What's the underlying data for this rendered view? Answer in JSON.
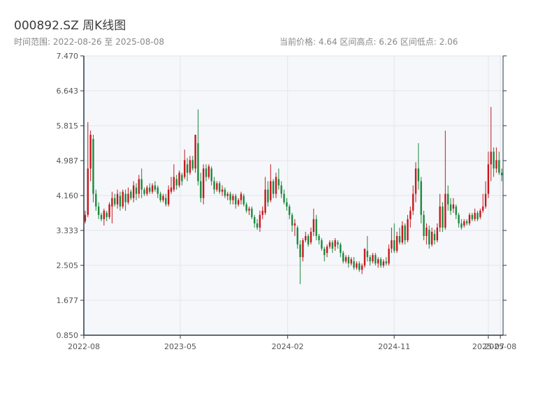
{
  "header": {
    "title": "000892.SZ 周K线图",
    "range_text": "时间范围: 2022-08-26 至 2025-08-08",
    "stats_text": "当前价格: 4.64  区间高点: 6.26  区间低点: 2.06"
  },
  "colors": {
    "up": "#c8161d",
    "down": "#1a8a3c",
    "plot_bg": "#f5f7fa",
    "grid": "#e3e6ea",
    "axis": "#2b3a4a"
  },
  "chart_data": {
    "type": "candlestick",
    "title": "000892.SZ 周K线图",
    "subtitle": "时间范围: 2022-08-26 至 2025-08-08",
    "ylim": [
      0.85,
      7.47
    ],
    "y_ticks": [
      "0.850",
      "1.677",
      "2.505",
      "3.333",
      "4.160",
      "4.987",
      "5.815",
      "6.643",
      "7.470"
    ],
    "x_ticks": [
      "2022-08",
      "2023-05",
      "2024-02",
      "2024-11",
      "2025-07",
      "2025-08"
    ],
    "x_range": [
      "2022-08-26",
      "2025-08-08"
    ],
    "grid": true,
    "candles": [
      [
        3.55,
        3.7,
        3.5,
        3.8
      ],
      [
        3.7,
        4.8,
        3.65,
        5.9
      ],
      [
        4.8,
        5.6,
        4.5,
        5.7
      ],
      [
        5.5,
        4.2,
        4.0,
        5.6
      ],
      [
        4.2,
        3.9,
        3.8,
        4.3
      ],
      [
        3.9,
        3.7,
        3.6,
        4.0
      ],
      [
        3.7,
        3.6,
        3.55,
        3.75
      ],
      [
        3.6,
        3.8,
        3.45,
        3.85
      ],
      [
        3.75,
        3.65,
        3.55,
        3.8
      ],
      [
        3.65,
        3.95,
        3.6,
        4.0
      ],
      [
        3.9,
        4.1,
        3.5,
        4.25
      ],
      [
        4.1,
        3.95,
        3.9,
        4.2
      ],
      [
        3.95,
        4.2,
        3.85,
        4.3
      ],
      [
        4.15,
        3.9,
        3.8,
        4.25
      ],
      [
        3.9,
        4.25,
        3.85,
        4.3
      ],
      [
        4.2,
        4.0,
        3.8,
        4.3
      ],
      [
        4.0,
        4.2,
        3.95,
        4.35
      ],
      [
        4.25,
        4.1,
        4.05,
        4.3
      ],
      [
        4.1,
        4.4,
        4.0,
        4.5
      ],
      [
        4.35,
        4.2,
        4.05,
        4.45
      ],
      [
        4.2,
        4.55,
        4.1,
        4.65
      ],
      [
        4.55,
        4.3,
        4.1,
        4.8
      ],
      [
        4.3,
        4.2,
        4.15,
        4.35
      ],
      [
        4.2,
        4.35,
        4.15,
        4.4
      ],
      [
        4.35,
        4.25,
        4.2,
        4.45
      ],
      [
        4.25,
        4.4,
        4.2,
        4.45
      ],
      [
        4.4,
        4.3,
        4.25,
        4.5
      ],
      [
        4.35,
        4.2,
        4.1,
        4.4
      ],
      [
        4.2,
        4.05,
        4.0,
        4.25
      ],
      [
        4.05,
        4.15,
        4.0,
        4.2
      ],
      [
        4.1,
        3.95,
        3.9,
        4.2
      ],
      [
        3.95,
        4.3,
        3.9,
        4.4
      ],
      [
        4.25,
        4.35,
        4.2,
        4.6
      ],
      [
        4.3,
        4.6,
        4.25,
        4.9
      ],
      [
        4.55,
        4.4,
        4.3,
        4.65
      ],
      [
        4.4,
        4.7,
        4.35,
        4.75
      ],
      [
        4.65,
        4.5,
        4.4,
        4.7
      ],
      [
        4.6,
        5.0,
        4.55,
        5.25
      ],
      [
        4.9,
        4.7,
        4.5,
        5.05
      ],
      [
        4.7,
        5.0,
        4.65,
        5.1
      ],
      [
        5.0,
        4.8,
        4.75,
        5.1
      ],
      [
        4.8,
        5.6,
        4.7,
        5.6
      ],
      [
        5.4,
        4.5,
        4.4,
        6.2
      ],
      [
        4.5,
        4.1,
        4.0,
        4.7
      ],
      [
        4.1,
        4.8,
        3.95,
        4.9
      ],
      [
        4.8,
        4.6,
        4.5,
        4.9
      ],
      [
        4.6,
        4.85,
        4.55,
        4.9
      ],
      [
        4.8,
        4.5,
        4.4,
        4.85
      ],
      [
        4.5,
        4.3,
        4.2,
        4.6
      ],
      [
        4.3,
        4.45,
        4.25,
        4.5
      ],
      [
        4.45,
        4.25,
        4.2,
        4.5
      ],
      [
        4.25,
        4.3,
        4.15,
        4.4
      ],
      [
        4.3,
        4.15,
        4.1,
        4.35
      ],
      [
        4.15,
        4.2,
        4.05,
        4.25
      ],
      [
        4.2,
        4.05,
        3.95,
        4.25
      ],
      [
        4.05,
        4.15,
        3.95,
        4.2
      ],
      [
        4.15,
        3.95,
        3.85,
        4.2
      ],
      [
        3.95,
        4.05,
        3.9,
        4.1
      ],
      [
        4.05,
        4.2,
        3.95,
        4.25
      ],
      [
        4.15,
        3.95,
        3.9,
        4.2
      ],
      [
        3.95,
        3.8,
        3.75,
        4.0
      ],
      [
        3.8,
        3.85,
        3.7,
        3.9
      ],
      [
        3.85,
        3.65,
        3.6,
        3.9
      ],
      [
        3.65,
        3.5,
        3.4,
        3.7
      ],
      [
        3.5,
        3.4,
        3.35,
        3.6
      ],
      [
        3.4,
        3.7,
        3.3,
        3.8
      ],
      [
        3.7,
        3.8,
        3.6,
        3.9
      ],
      [
        3.75,
        4.3,
        3.7,
        4.6
      ],
      [
        4.3,
        4.0,
        3.9,
        4.5
      ],
      [
        4.05,
        4.5,
        4.0,
        4.9
      ],
      [
        4.5,
        4.2,
        4.1,
        4.55
      ],
      [
        4.2,
        4.6,
        4.1,
        4.7
      ],
      [
        4.55,
        4.4,
        4.3,
        4.8
      ],
      [
        4.4,
        4.2,
        4.1,
        4.5
      ],
      [
        4.2,
        4.0,
        3.95,
        4.3
      ],
      [
        4.0,
        3.9,
        3.8,
        4.1
      ],
      [
        3.9,
        3.7,
        3.6,
        3.95
      ],
      [
        3.7,
        3.45,
        3.3,
        3.75
      ],
      [
        3.45,
        3.5,
        3.2,
        3.6
      ],
      [
        3.4,
        3.0,
        2.9,
        3.45
      ],
      [
        3.0,
        2.7,
        2.06,
        3.1
      ],
      [
        2.7,
        3.1,
        2.6,
        3.15
      ],
      [
        3.1,
        3.2,
        3.05,
        3.3
      ],
      [
        3.2,
        3.0,
        2.95,
        3.25
      ],
      [
        3.05,
        3.3,
        3.0,
        3.4
      ],
      [
        3.3,
        3.6,
        3.2,
        3.85
      ],
      [
        3.6,
        3.2,
        3.1,
        3.7
      ],
      [
        3.2,
        3.1,
        3.0,
        3.25
      ],
      [
        3.1,
        2.9,
        2.85,
        3.15
      ],
      [
        2.9,
        2.75,
        2.6,
        2.95
      ],
      [
        2.8,
        2.95,
        2.7,
        3.0
      ],
      [
        2.95,
        3.05,
        2.9,
        3.1
      ],
      [
        3.05,
        2.9,
        2.8,
        3.1
      ],
      [
        2.95,
        3.1,
        2.85,
        3.15
      ],
      [
        3.05,
        3.0,
        2.9,
        3.1
      ],
      [
        3.0,
        2.8,
        2.7,
        3.05
      ],
      [
        2.8,
        2.6,
        2.55,
        2.85
      ],
      [
        2.6,
        2.7,
        2.55,
        2.75
      ],
      [
        2.7,
        2.55,
        2.45,
        2.75
      ],
      [
        2.55,
        2.65,
        2.5,
        2.7
      ],
      [
        2.6,
        2.45,
        2.4,
        2.7
      ],
      [
        2.45,
        2.55,
        2.4,
        2.6
      ],
      [
        2.55,
        2.4,
        2.35,
        2.6
      ],
      [
        2.4,
        2.5,
        2.3,
        2.55
      ],
      [
        2.5,
        2.9,
        2.45,
        2.9
      ],
      [
        2.85,
        2.7,
        2.6,
        3.2
      ],
      [
        2.7,
        2.6,
        2.5,
        2.75
      ],
      [
        2.6,
        2.75,
        2.55,
        2.8
      ],
      [
        2.75,
        2.55,
        2.5,
        2.8
      ],
      [
        2.55,
        2.65,
        2.45,
        2.7
      ],
      [
        2.65,
        2.5,
        2.45,
        2.7
      ],
      [
        2.5,
        2.6,
        2.45,
        2.65
      ],
      [
        2.6,
        2.55,
        2.5,
        2.7
      ],
      [
        2.55,
        2.9,
        2.5,
        3.0
      ],
      [
        2.9,
        3.1,
        2.8,
        3.4
      ],
      [
        3.1,
        2.85,
        2.8,
        3.5
      ],
      [
        2.85,
        3.2,
        2.8,
        3.3
      ],
      [
        3.2,
        3.05,
        3.0,
        3.4
      ],
      [
        3.05,
        3.45,
        3.0,
        3.55
      ],
      [
        3.45,
        3.1,
        3.0,
        3.5
      ],
      [
        3.1,
        3.6,
        3.05,
        3.7
      ],
      [
        3.6,
        3.8,
        3.4,
        3.9
      ],
      [
        3.8,
        4.2,
        3.7,
        4.4
      ],
      [
        4.2,
        4.8,
        4.0,
        4.95
      ],
      [
        4.8,
        4.5,
        4.3,
        5.4
      ],
      [
        4.5,
        3.7,
        3.5,
        4.6
      ],
      [
        3.7,
        3.2,
        3.1,
        3.8
      ],
      [
        3.2,
        3.4,
        3.0,
        3.5
      ],
      [
        3.35,
        3.0,
        2.9,
        3.45
      ],
      [
        3.0,
        3.3,
        2.95,
        3.4
      ],
      [
        3.25,
        3.1,
        3.0,
        3.35
      ],
      [
        3.1,
        3.4,
        3.05,
        3.5
      ],
      [
        3.4,
        3.9,
        3.3,
        4.2
      ],
      [
        3.9,
        3.4,
        3.3,
        4.0
      ],
      [
        3.4,
        4.2,
        3.35,
        5.7
      ],
      [
        4.2,
        3.95,
        3.8,
        4.4
      ],
      [
        3.95,
        3.8,
        3.7,
        4.1
      ],
      [
        3.85,
        3.95,
        3.75,
        4.1
      ],
      [
        3.9,
        3.7,
        3.6,
        3.95
      ],
      [
        3.7,
        3.5,
        3.4,
        3.75
      ],
      [
        3.5,
        3.4,
        3.35,
        3.6
      ],
      [
        3.45,
        3.55,
        3.4,
        3.6
      ],
      [
        3.55,
        3.5,
        3.45,
        3.6
      ],
      [
        3.5,
        3.7,
        3.45,
        3.75
      ],
      [
        3.7,
        3.6,
        3.55,
        3.75
      ],
      [
        3.6,
        3.75,
        3.55,
        3.85
      ],
      [
        3.75,
        3.6,
        3.55,
        3.8
      ],
      [
        3.65,
        3.8,
        3.6,
        3.85
      ],
      [
        3.8,
        3.9,
        3.75,
        4.2
      ],
      [
        3.9,
        4.2,
        3.85,
        4.5
      ],
      [
        4.2,
        4.9,
        4.1,
        5.2
      ],
      [
        4.9,
        5.2,
        4.5,
        6.26
      ],
      [
        5.2,
        4.8,
        4.6,
        5.3
      ],
      [
        4.8,
        5.0,
        4.7,
        5.3
      ],
      [
        5.0,
        4.7,
        4.65,
        5.2
      ],
      [
        4.7,
        4.64,
        4.5,
        4.8
      ]
    ]
  }
}
